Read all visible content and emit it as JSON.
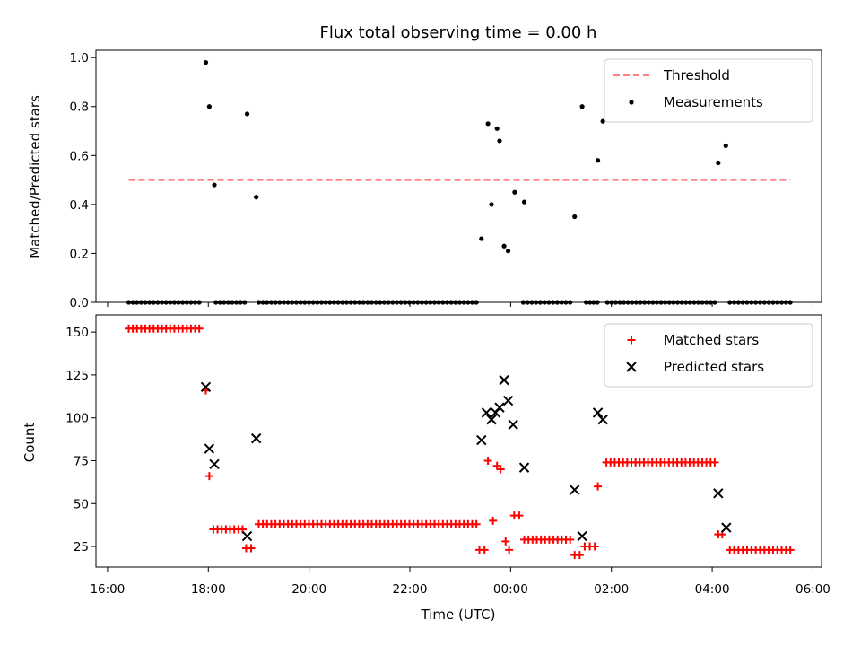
{
  "chart_data": {
    "type": "scatter",
    "title": "Flux total observing time = 0.00 h",
    "xlabel": "Time (UTC)",
    "xlim_hours": [
      15.77,
      30.17
    ],
    "x_ticks": [
      {
        "value": 16,
        "label": "16:00"
      },
      {
        "value": 18,
        "label": "18:00"
      },
      {
        "value": 20,
        "label": "20:00"
      },
      {
        "value": 22,
        "label": "22:00"
      },
      {
        "value": 24,
        "label": "00:00"
      },
      {
        "value": 26,
        "label": "02:00"
      },
      {
        "value": 28,
        "label": "04:00"
      },
      {
        "value": 30,
        "label": "06:00"
      }
    ],
    "panels": [
      {
        "id": "top",
        "ylabel": "Matched/Predicted stars",
        "ylim": [
          0.0,
          1.03
        ],
        "y_ticks": [
          0.0,
          0.2,
          0.4,
          0.6,
          0.8,
          1.0
        ],
        "y_tick_labels": [
          "0.0",
          "0.2",
          "0.4",
          "0.6",
          "0.8",
          "1.0"
        ],
        "legend_position": "upper right",
        "series": [
          {
            "name": "Threshold",
            "kind": "dashed-line",
            "color": "#ff7f7f",
            "x": [
              16.42,
              29.55
            ],
            "y": [
              0.5,
              0.5
            ]
          },
          {
            "name": "Measurements",
            "kind": "dots",
            "color": "#000000",
            "zero_runs": [
              {
                "from": 16.42,
                "to": 17.82
              },
              {
                "from": 18.15,
                "to": 18.72
              },
              {
                "from": 19.0,
                "to": 23.32
              },
              {
                "from": 24.25,
                "to": 25.18
              },
              {
                "from": 25.5,
                "to": 25.72
              },
              {
                "from": 25.92,
                "to": 28.05
              },
              {
                "from": 28.35,
                "to": 29.55
              }
            ],
            "points": [
              [
                17.95,
                0.98
              ],
              [
                18.02,
                0.8
              ],
              [
                18.12,
                0.48
              ],
              [
                18.77,
                0.77
              ],
              [
                18.95,
                0.43
              ],
              [
                23.42,
                0.26
              ],
              [
                23.55,
                0.73
              ],
              [
                23.62,
                0.4
              ],
              [
                23.73,
                0.71
              ],
              [
                23.78,
                0.66
              ],
              [
                23.87,
                0.23
              ],
              [
                23.95,
                0.21
              ],
              [
                24.08,
                0.45
              ],
              [
                24.27,
                0.41
              ],
              [
                25.27,
                0.35
              ],
              [
                25.42,
                0.8
              ],
              [
                25.73,
                0.58
              ],
              [
                25.83,
                0.74
              ],
              [
                28.12,
                0.57
              ],
              [
                28.27,
                0.64
              ]
            ]
          }
        ]
      },
      {
        "id": "bottom",
        "ylabel": "Count",
        "ylim": [
          13,
          160
        ],
        "y_ticks": [
          25,
          50,
          75,
          100,
          125,
          150
        ],
        "y_tick_labels": [
          "25",
          "50",
          "75",
          "100",
          "125",
          "150"
        ],
        "legend_position": "upper right",
        "series": [
          {
            "name": "Matched stars",
            "kind": "plus",
            "color": "#ff0000",
            "runs": [
              {
                "from": 16.42,
                "to": 17.82,
                "value": 152
              },
              {
                "from": 18.1,
                "to": 18.68,
                "value": 35
              },
              {
                "from": 19.0,
                "to": 23.32,
                "value": 38
              },
              {
                "from": 24.27,
                "to": 25.18,
                "value": 29
              },
              {
                "from": 25.9,
                "to": 28.05,
                "value": 74
              },
              {
                "from": 28.35,
                "to": 29.55,
                "value": 23
              }
            ],
            "points": [
              [
                17.95,
                116
              ],
              [
                18.02,
                66
              ],
              [
                18.75,
                24
              ],
              [
                18.85,
                24
              ],
              [
                23.38,
                23
              ],
              [
                23.48,
                23
              ],
              [
                23.55,
                75
              ],
              [
                23.65,
                40
              ],
              [
                23.73,
                72
              ],
              [
                23.8,
                70
              ],
              [
                23.9,
                28
              ],
              [
                23.97,
                23
              ],
              [
                24.07,
                43
              ],
              [
                24.17,
                43
              ],
              [
                25.27,
                20
              ],
              [
                25.37,
                20
              ],
              [
                25.47,
                25
              ],
              [
                25.57,
                25
              ],
              [
                25.67,
                25
              ],
              [
                25.73,
                60
              ],
              [
                28.12,
                32
              ],
              [
                28.2,
                32
              ]
            ]
          },
          {
            "name": "Predicted stars",
            "kind": "x",
            "color": "#000000",
            "points": [
              [
                17.95,
                118
              ],
              [
                18.02,
                82
              ],
              [
                18.12,
                73
              ],
              [
                18.77,
                31
              ],
              [
                18.95,
                88
              ],
              [
                23.42,
                87
              ],
              [
                23.52,
                103
              ],
              [
                23.62,
                99
              ],
              [
                23.7,
                103
              ],
              [
                23.78,
                106
              ],
              [
                23.87,
                122
              ],
              [
                23.95,
                110
              ],
              [
                24.05,
                96
              ],
              [
                24.27,
                71
              ],
              [
                25.27,
                58
              ],
              [
                25.42,
                31
              ],
              [
                25.73,
                103
              ],
              [
                25.83,
                99
              ],
              [
                28.12,
                56
              ],
              [
                28.28,
                36
              ]
            ]
          }
        ]
      }
    ]
  }
}
